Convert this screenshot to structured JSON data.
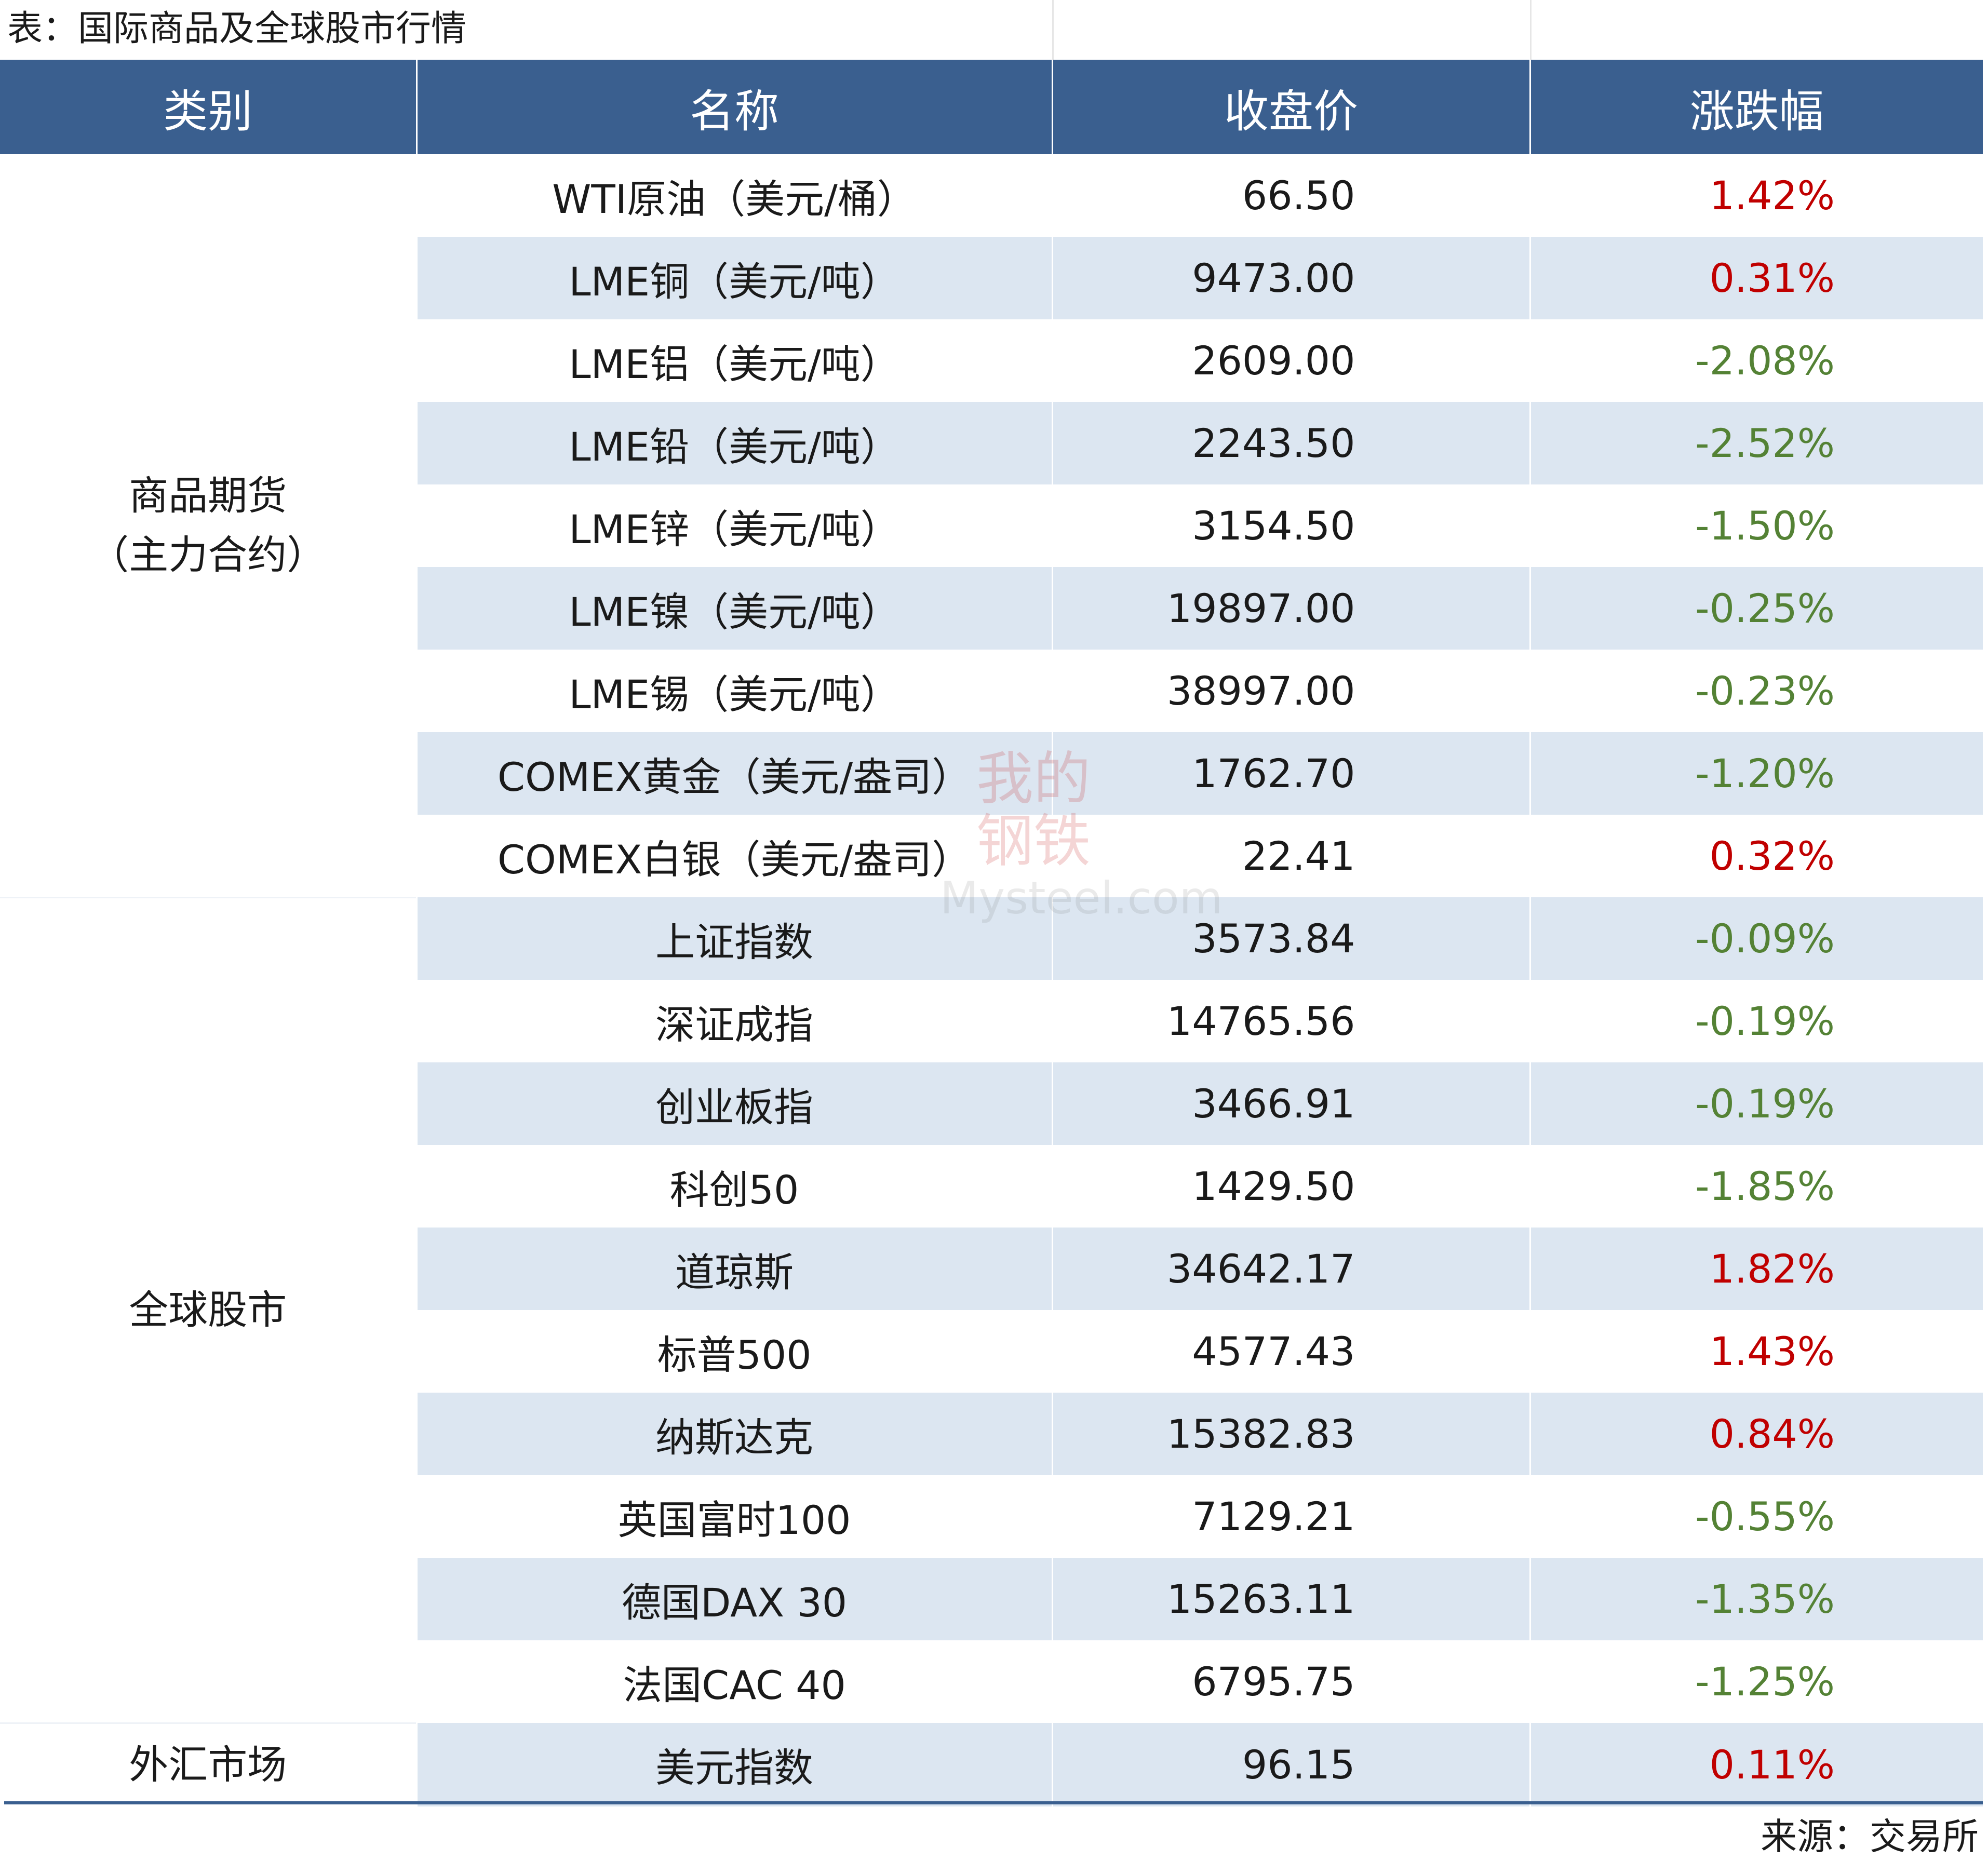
{
  "title": "表：国际商品及全球股市行情",
  "headers": [
    "类别",
    "名称",
    "收盘价",
    "涨跌幅"
  ],
  "groups": [
    {
      "category": "商品期货\n（主力合约）",
      "rows": [
        {
          "name": "WTI原油（美元/桶）",
          "price": "66.50",
          "change": "1.42%",
          "direction": "up"
        },
        {
          "name": "LME铜（美元/吨）",
          "price": "9473.00",
          "change": "0.31%",
          "direction": "up"
        },
        {
          "name": "LME铝（美元/吨）",
          "price": "2609.00",
          "change": "-2.08%",
          "direction": "down"
        },
        {
          "name": "LME铅（美元/吨）",
          "price": "2243.50",
          "change": "-2.52%",
          "direction": "down"
        },
        {
          "name": "LME锌（美元/吨）",
          "price": "3154.50",
          "change": "-1.50%",
          "direction": "down"
        },
        {
          "name": "LME镍（美元/吨）",
          "price": "19897.00",
          "change": "-0.25%",
          "direction": "down"
        },
        {
          "name": "LME锡（美元/吨）",
          "price": "38997.00",
          "change": "-0.23%",
          "direction": "down"
        },
        {
          "name": "COMEX黄金（美元/盎司）",
          "price": "1762.70",
          "change": "-1.20%",
          "direction": "down"
        },
        {
          "name": "COMEX白银（美元/盎司）",
          "price": "22.41",
          "change": "0.32%",
          "direction": "up"
        }
      ]
    },
    {
      "category": "全球股市",
      "rows": [
        {
          "name": "上证指数",
          "price": "3573.84",
          "change": "-0.09%",
          "direction": "down"
        },
        {
          "name": "深证成指",
          "price": "14765.56",
          "change": "-0.19%",
          "direction": "down"
        },
        {
          "name": "创业板指",
          "price": "3466.91",
          "change": "-0.19%",
          "direction": "down"
        },
        {
          "name": "科创50",
          "price": "1429.50",
          "change": "-1.85%",
          "direction": "down"
        },
        {
          "name": "道琼斯",
          "price": "34642.17",
          "change": "1.82%",
          "direction": "up"
        },
        {
          "name": "标普500",
          "price": "4577.43",
          "change": "1.43%",
          "direction": "up"
        },
        {
          "name": "纳斯达克",
          "price": "15382.83",
          "change": "0.84%",
          "direction": "up"
        },
        {
          "name": "英国富时100",
          "price": "7129.21",
          "change": "-0.55%",
          "direction": "down"
        },
        {
          "name": "德国DAX 30",
          "price": "15263.11",
          "change": "-1.35%",
          "direction": "down"
        },
        {
          "name": "法国CAC 40",
          "price": "6795.75",
          "change": "-1.25%",
          "direction": "down"
        }
      ]
    },
    {
      "category": "外汇市场",
      "rows": [
        {
          "name": "美元指数",
          "price": "96.15",
          "change": "0.11%",
          "direction": "up"
        }
      ]
    }
  ],
  "colors": {
    "header_bg": "#3a5f8f",
    "band": "#dce6f1",
    "up": "#c00000",
    "down": "#548235"
  },
  "watermark": {
    "cn": "我的钢铁",
    "en": "Mysteel.com"
  },
  "source": "来源：交易所"
}
